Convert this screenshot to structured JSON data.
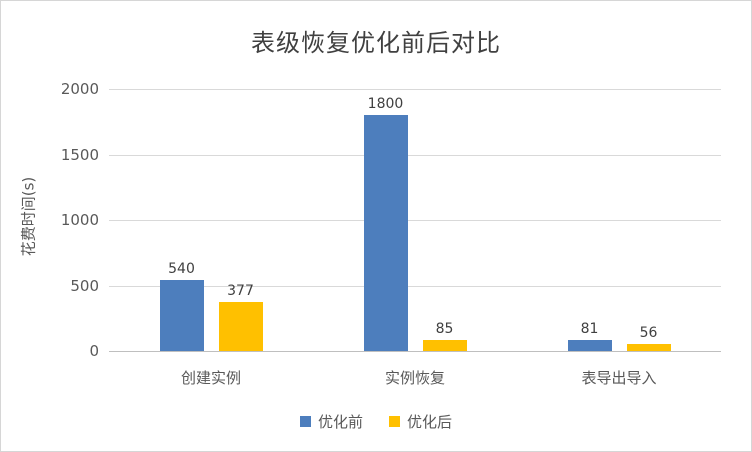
{
  "chart_data": {
    "type": "bar",
    "title": "表级恢复优化前后对比",
    "xlabel": "",
    "ylabel": "花费时间(s)",
    "categories": [
      "创建实例",
      "实例恢复",
      "表导出导入"
    ],
    "series": [
      {
        "name": "优化前",
        "color": "#4d7ebd",
        "values": [
          540,
          1800,
          81
        ]
      },
      {
        "name": "优化后",
        "color": "#ffc000",
        "values": [
          377,
          85,
          56
        ]
      }
    ],
    "ylim": [
      0,
      2000
    ],
    "yticks": [
      0,
      500,
      1000,
      1500,
      2000
    ],
    "grid": true,
    "legend_position": "bottom"
  }
}
